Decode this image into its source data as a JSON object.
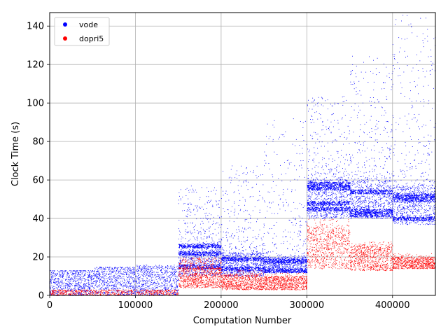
{
  "chart_data": {
    "type": "scatter",
    "xlabel": "Computation Number",
    "ylabel": "Clock Time (s)",
    "xlim": [
      0,
      450000
    ],
    "ylim": [
      0,
      147
    ],
    "grid": true,
    "legend_position": "top-left",
    "x_ticks": [
      0,
      100000,
      200000,
      300000,
      400000
    ],
    "x_tick_labels": [
      "0",
      "100000",
      "200000",
      "300000",
      "400000"
    ],
    "y_ticks": [
      0,
      20,
      40,
      60,
      80,
      100,
      120,
      140
    ],
    "y_tick_labels": [
      "0",
      "20",
      "40",
      "60",
      "80",
      "100",
      "120",
      "140"
    ],
    "series": [
      {
        "name": "vode",
        "color": "#0000ff",
        "segments": [
          {
            "x_range": [
              0,
              50000
            ],
            "dense_y": [
              0,
              13
            ],
            "sparse_max": 13
          },
          {
            "x_range": [
              50000,
              100000
            ],
            "dense_y": [
              0,
              14.5
            ],
            "sparse_max": 15
          },
          {
            "x_range": [
              100000,
              150000
            ],
            "dense_y": [
              0,
              15
            ],
            "sparse_max": 16
          },
          {
            "x_range": [
              150000,
              200000
            ],
            "dense_y": [
              10,
              26
            ],
            "sparse_max": 57,
            "bands": [
              15,
              22,
              26
            ]
          },
          {
            "x_range": [
              200000,
              250000
            ],
            "dense_y": [
              10,
              22
            ],
            "sparse_max": 68,
            "bands": [
              14,
              19
            ]
          },
          {
            "x_range": [
              250000,
              300000
            ],
            "dense_y": [
              12,
              20
            ],
            "sparse_max": 92,
            "bands": [
              13,
              18
            ]
          },
          {
            "x_range": [
              300000,
              350000
            ],
            "dense_y": [
              40,
              60
            ],
            "sparse_max": 104,
            "bands": [
              45,
              48,
              56,
              58
            ]
          },
          {
            "x_range": [
              350000,
              400000
            ],
            "dense_y": [
              40,
              60
            ],
            "sparse_max": 126,
            "bands": [
              42,
              44,
              54
            ]
          },
          {
            "x_range": [
              400000,
              450000
            ],
            "dense_y": [
              37,
              57
            ],
            "sparse_max": 147,
            "bands": [
              40,
              50,
              52
            ]
          }
        ]
      },
      {
        "name": "dopri5",
        "color": "#ff0000",
        "segments": [
          {
            "x_range": [
              0,
              150000
            ],
            "dense_y": [
              0,
              3
            ],
            "sparse_max": 3
          },
          {
            "x_range": [
              150000,
              200000
            ],
            "dense_y": [
              4,
              14
            ],
            "sparse_max": 20
          },
          {
            "x_range": [
              200000,
              250000
            ],
            "dense_y": [
              3,
              11
            ],
            "sparse_max": 14
          },
          {
            "x_range": [
              250000,
              300000
            ],
            "dense_y": [
              3,
              10
            ],
            "sparse_max": 12
          },
          {
            "x_range": [
              300000,
              350000
            ],
            "dense_y": [
              14,
              36
            ],
            "sparse_max": 40
          },
          {
            "x_range": [
              350000,
              400000
            ],
            "dense_y": [
              13,
              26
            ],
            "sparse_max": 28
          },
          {
            "x_range": [
              400000,
              450000
            ],
            "dense_y": [
              14,
              20
            ],
            "sparse_max": 22
          }
        ]
      }
    ]
  }
}
